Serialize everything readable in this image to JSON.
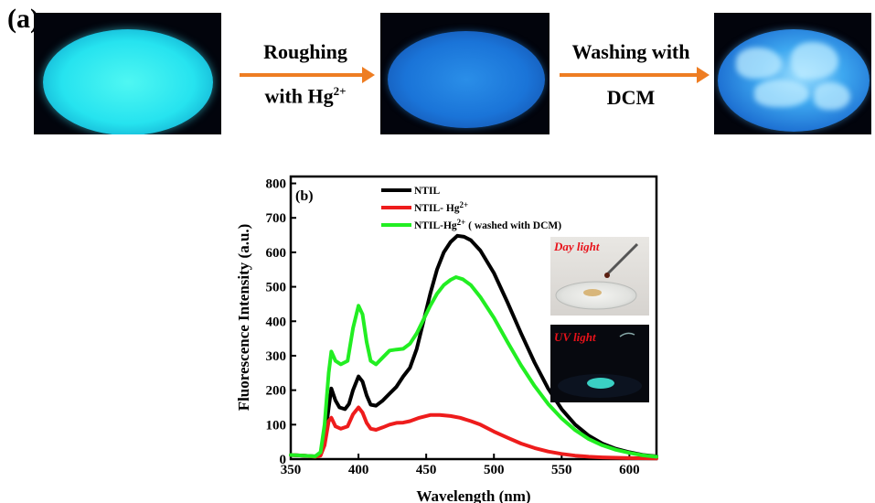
{
  "panel_a": {
    "label": "(a)",
    "step1": {
      "line1": "Roughing",
      "line2_prefix": "with Hg",
      "line2_sup": "2+"
    },
    "step2": {
      "line1": "Washing with",
      "line2": "DCM"
    }
  },
  "colors": {
    "arrow": "#ee7d22"
  },
  "chart_data": {
    "type": "line",
    "panel_label": "(b)",
    "xlabel": "Wavelength (nm)",
    "ylabel": "Fluorescence Intensity (a.u.)",
    "xlim": [
      350,
      620
    ],
    "ylim": [
      0,
      820
    ],
    "xticks": [
      350,
      400,
      450,
      500,
      550,
      600
    ],
    "yticks": [
      0,
      100,
      200,
      300,
      400,
      500,
      600,
      700,
      800
    ],
    "legend_position": "top-center",
    "series": [
      {
        "name": "NTIL",
        "name_parts": [
          "NTIL",
          "",
          ""
        ],
        "color": "#000000",
        "points": [
          [
            350,
            12
          ],
          [
            360,
            10
          ],
          [
            368,
            8
          ],
          [
            372,
            15
          ],
          [
            375,
            50
          ],
          [
            378,
            150
          ],
          [
            380,
            205
          ],
          [
            383,
            170
          ],
          [
            386,
            150
          ],
          [
            390,
            145
          ],
          [
            393,
            160
          ],
          [
            396,
            200
          ],
          [
            400,
            240
          ],
          [
            403,
            225
          ],
          [
            406,
            185
          ],
          [
            409,
            158
          ],
          [
            413,
            155
          ],
          [
            418,
            170
          ],
          [
            423,
            190
          ],
          [
            428,
            210
          ],
          [
            433,
            240
          ],
          [
            438,
            265
          ],
          [
            443,
            320
          ],
          [
            448,
            400
          ],
          [
            453,
            480
          ],
          [
            458,
            550
          ],
          [
            463,
            600
          ],
          [
            468,
            630
          ],
          [
            473,
            648
          ],
          [
            478,
            645
          ],
          [
            483,
            635
          ],
          [
            490,
            605
          ],
          [
            500,
            540
          ],
          [
            510,
            455
          ],
          [
            520,
            365
          ],
          [
            530,
            280
          ],
          [
            540,
            205
          ],
          [
            550,
            145
          ],
          [
            560,
            100
          ],
          [
            570,
            68
          ],
          [
            580,
            45
          ],
          [
            590,
            30
          ],
          [
            600,
            20
          ],
          [
            610,
            12
          ],
          [
            620,
            8
          ]
        ]
      },
      {
        "name": "NTIL- Hg2+",
        "name_parts": [
          "NTIL- Hg",
          "2+",
          ""
        ],
        "color": "#ee1c1c",
        "points": [
          [
            350,
            12
          ],
          [
            360,
            10
          ],
          [
            368,
            7
          ],
          [
            372,
            10
          ],
          [
            375,
            40
          ],
          [
            378,
            110
          ],
          [
            380,
            120
          ],
          [
            383,
            95
          ],
          [
            387,
            88
          ],
          [
            392,
            95
          ],
          [
            396,
            130
          ],
          [
            400,
            150
          ],
          [
            403,
            135
          ],
          [
            406,
            105
          ],
          [
            409,
            88
          ],
          [
            413,
            85
          ],
          [
            418,
            92
          ],
          [
            423,
            100
          ],
          [
            428,
            105
          ],
          [
            433,
            106
          ],
          [
            438,
            110
          ],
          [
            445,
            120
          ],
          [
            453,
            128
          ],
          [
            460,
            128
          ],
          [
            468,
            125
          ],
          [
            475,
            120
          ],
          [
            483,
            110
          ],
          [
            490,
            100
          ],
          [
            500,
            80
          ],
          [
            510,
            62
          ],
          [
            520,
            45
          ],
          [
            530,
            32
          ],
          [
            540,
            22
          ],
          [
            550,
            15
          ],
          [
            560,
            10
          ],
          [
            570,
            7
          ],
          [
            580,
            5
          ],
          [
            590,
            4
          ],
          [
            600,
            3
          ],
          [
            620,
            2
          ]
        ]
      },
      {
        "name": "NTIL-Hg2+ ( washed with DCM)",
        "name_parts": [
          "NTIL-Hg",
          "2+",
          " ( washed with DCM)"
        ],
        "color": "#22ee22",
        "points": [
          [
            350,
            12
          ],
          [
            360,
            10
          ],
          [
            368,
            8
          ],
          [
            372,
            20
          ],
          [
            375,
            100
          ],
          [
            378,
            250
          ],
          [
            380,
            312
          ],
          [
            383,
            285
          ],
          [
            387,
            275
          ],
          [
            392,
            285
          ],
          [
            396,
            380
          ],
          [
            400,
            445
          ],
          [
            403,
            420
          ],
          [
            406,
            340
          ],
          [
            409,
            285
          ],
          [
            413,
            275
          ],
          [
            418,
            295
          ],
          [
            423,
            315
          ],
          [
            428,
            318
          ],
          [
            433,
            320
          ],
          [
            438,
            335
          ],
          [
            443,
            365
          ],
          [
            448,
            405
          ],
          [
            453,
            445
          ],
          [
            458,
            480
          ],
          [
            463,
            505
          ],
          [
            468,
            520
          ],
          [
            472,
            528
          ],
          [
            477,
            522
          ],
          [
            483,
            505
          ],
          [
            490,
            470
          ],
          [
            500,
            410
          ],
          [
            510,
            340
          ],
          [
            520,
            272
          ],
          [
            530,
            212
          ],
          [
            540,
            160
          ],
          [
            550,
            118
          ],
          [
            560,
            84
          ],
          [
            570,
            58
          ],
          [
            580,
            40
          ],
          [
            590,
            27
          ],
          [
            600,
            18
          ],
          [
            610,
            11
          ],
          [
            620,
            7
          ]
        ]
      }
    ],
    "insets": [
      {
        "label": "Day light"
      },
      {
        "label": "UV light"
      }
    ]
  }
}
